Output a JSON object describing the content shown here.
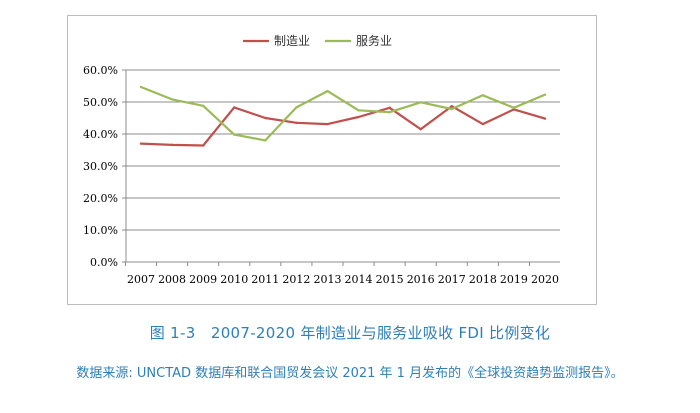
{
  "chart_data": {
    "type": "line",
    "x": [
      "2007",
      "2008",
      "2009",
      "2010",
      "2011",
      "2012",
      "2013",
      "2014",
      "2015",
      "2016",
      "2017",
      "2018",
      "2019",
      "2020"
    ],
    "series": [
      {
        "name": "制造业",
        "color": "#c0504d",
        "values": [
          37.0,
          36.6,
          36.4,
          48.3,
          45.0,
          43.5,
          43.1,
          45.3,
          48.2,
          41.5,
          48.7,
          43.1,
          47.7,
          44.8
        ]
      },
      {
        "name": "服务业",
        "color": "#9bbb59",
        "values": [
          54.7,
          50.8,
          48.8,
          39.8,
          38.0,
          48.3,
          53.4,
          47.4,
          46.8,
          49.9,
          47.8,
          52.1,
          48.2,
          52.3
        ]
      }
    ],
    "y_ticks": [
      "0.0%",
      "10.0%",
      "20.0%",
      "30.0%",
      "40.0%",
      "50.0%",
      "60.0%"
    ],
    "ylim": [
      0,
      60
    ],
    "grid": "horizontal",
    "legend": "top-center"
  },
  "caption": {
    "title": "图 1-3　2007-2020 年制造业与服务业吸收 FDI 比例变化",
    "source": "数据来源: UNCTAD 数据库和联合国贸发会议 2021 年 1 月发布的《全球投资趋势监测报告》。"
  }
}
